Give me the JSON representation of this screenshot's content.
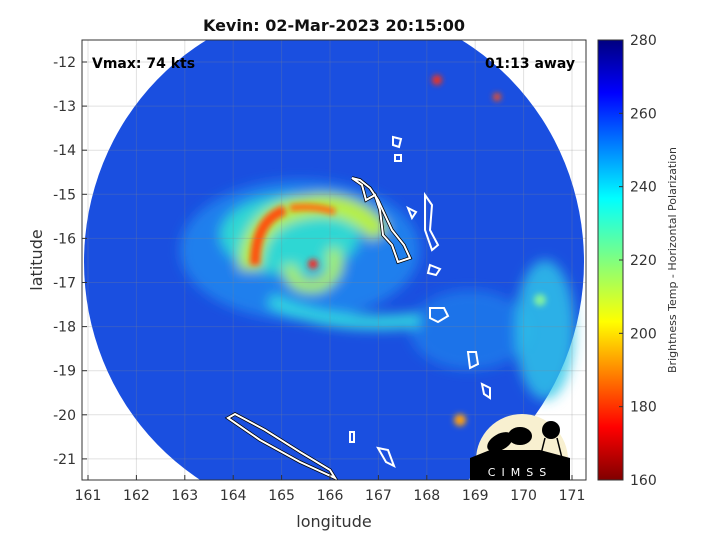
{
  "title": "Kevin: 02-Mar-2023 20:15:00",
  "vmax_label": "Vmax: 74 kts",
  "time_label": "01:13 away",
  "xlabel": "longitude",
  "ylabel": "latitude",
  "x_ticks": [
    "161",
    "162",
    "163",
    "164",
    "165",
    "166",
    "167",
    "168",
    "169",
    "170",
    "171"
  ],
  "y_ticks": [
    "-12",
    "-13",
    "-14",
    "-15",
    "-16",
    "-17",
    "-18",
    "-19",
    "-20",
    "-21"
  ],
  "colorbar": {
    "label": "Brightness Temp - Horizontal Polarization",
    "ticks": [
      "280",
      "260",
      "240",
      "220",
      "200",
      "180",
      "160"
    ],
    "range": [
      160,
      280
    ],
    "colormap": "jet"
  },
  "logo_text": "CIMSS",
  "colors": {
    "swath_background": "#1a4fe0",
    "coastline": "#ffffff"
  }
}
